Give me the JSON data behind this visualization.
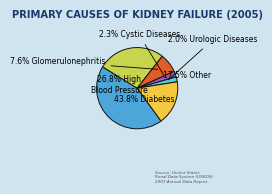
{
  "title": "PRIMARY CAUSES OF KIDNEY FAILURE (2005)",
  "slices": [
    {
      "label": "43.8% Diabetes",
      "value": 43.8,
      "color": "#4da6d9"
    },
    {
      "label": "26.8% High\nBlood Pressure",
      "value": 26.8,
      "color": "#c8d44e"
    },
    {
      "label": "7.6% Glomerulonephritis",
      "value": 7.6,
      "color": "#e05c28"
    },
    {
      "label": "2.3% Cystic Diseases",
      "value": 2.3,
      "color": "#9b59b6"
    },
    {
      "label": "2.0% Urologic Diseases",
      "value": 2.0,
      "color": "#5bc8d4"
    },
    {
      "label": "17.5% Other",
      "value": 17.5,
      "color": "#f5c842"
    }
  ],
  "background_color": "#d0e4f0",
  "title_color": "#1a3a6b",
  "source_text": "Source: United States\nRenal Data System (USRDS)\n2007 Annual Data Report",
  "wedge_edge_color": "#111111",
  "label_fontsize": 5.5,
  "title_fontsize": 7.2
}
